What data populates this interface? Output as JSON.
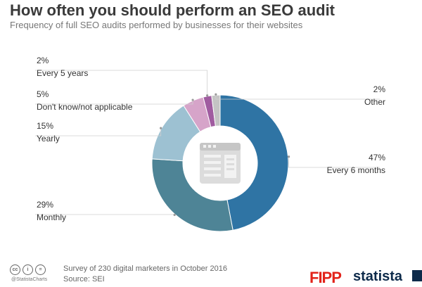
{
  "title": "How often you should perform an SEO audit",
  "subtitle": "Frequency of full SEO audits performed by businesses for their websites",
  "chart_data": {
    "type": "pie",
    "donut": true,
    "slices": [
      {
        "name": "Every 6 months",
        "value": 47,
        "label": "47%",
        "color": "#2f74a4"
      },
      {
        "name": "Monthly",
        "value": 29,
        "label": "29%",
        "color": "#4e8496"
      },
      {
        "name": "Yearly",
        "value": 15,
        "label": "15%",
        "color": "#9dc1d2"
      },
      {
        "name": "Don't know/not applicable",
        "value": 5,
        "label": "5%",
        "color": "#d6a4c9"
      },
      {
        "name": "Every 5 years",
        "value": 2,
        "label": "2%",
        "color": "#a05ca0"
      },
      {
        "name": "Other",
        "value": 2,
        "label": "2%",
        "color": "#c4c4c4"
      }
    ],
    "center_icon": "audit-report-icon"
  },
  "footer": {
    "license_icons": [
      "cc-icon",
      "by-icon",
      "nd-icon"
    ],
    "license_glyphs": [
      "cc",
      "i",
      "="
    ],
    "handle": "@StatistaCharts",
    "survey_note": "Survey of 230 digital marketers in October 2016",
    "source": "Source: SEI",
    "logo_left": "FIPP",
    "logo_right": "statista"
  }
}
